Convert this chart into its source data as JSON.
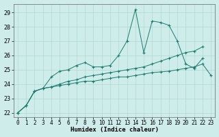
{
  "title": "",
  "xlabel": "Humidex (Indice chaleur)",
  "ylabel": "",
  "background_color": "#ceecea",
  "grid_color": "#afd8d4",
  "line_color": "#1a7a6e",
  "xlim": [
    -0.5,
    23.5
  ],
  "ylim": [
    21.7,
    29.6
  ],
  "yticks": [
    22,
    23,
    24,
    25,
    26,
    27,
    28,
    29
  ],
  "xticks": [
    0,
    1,
    2,
    3,
    4,
    5,
    6,
    7,
    8,
    9,
    10,
    11,
    12,
    13,
    14,
    15,
    16,
    17,
    18,
    19,
    20,
    21,
    22,
    23
  ],
  "series1": [
    22.0,
    22.5,
    23.5,
    23.7,
    24.5,
    24.9,
    25.0,
    25.3,
    25.5,
    25.2,
    25.2,
    25.3,
    26.0,
    27.0,
    29.2,
    26.2,
    28.4,
    28.3,
    28.1,
    27.0,
    25.4,
    25.1,
    25.8,
    null
  ],
  "series2": [
    22.0,
    22.5,
    23.5,
    23.7,
    23.8,
    24.0,
    24.2,
    24.3,
    24.5,
    24.6,
    24.7,
    24.8,
    24.9,
    25.0,
    25.1,
    25.2,
    25.4,
    25.6,
    25.8,
    26.0,
    26.2,
    26.3,
    26.6,
    null
  ],
  "series3": [
    22.0,
    22.5,
    23.5,
    23.7,
    23.8,
    23.9,
    24.0,
    24.1,
    24.2,
    24.2,
    24.3,
    24.4,
    24.5,
    24.5,
    24.6,
    24.7,
    24.8,
    24.85,
    24.9,
    25.0,
    25.1,
    25.2,
    25.4,
    24.6
  ],
  "tick_fontsize": 5.5,
  "xlabel_fontsize": 6.5
}
